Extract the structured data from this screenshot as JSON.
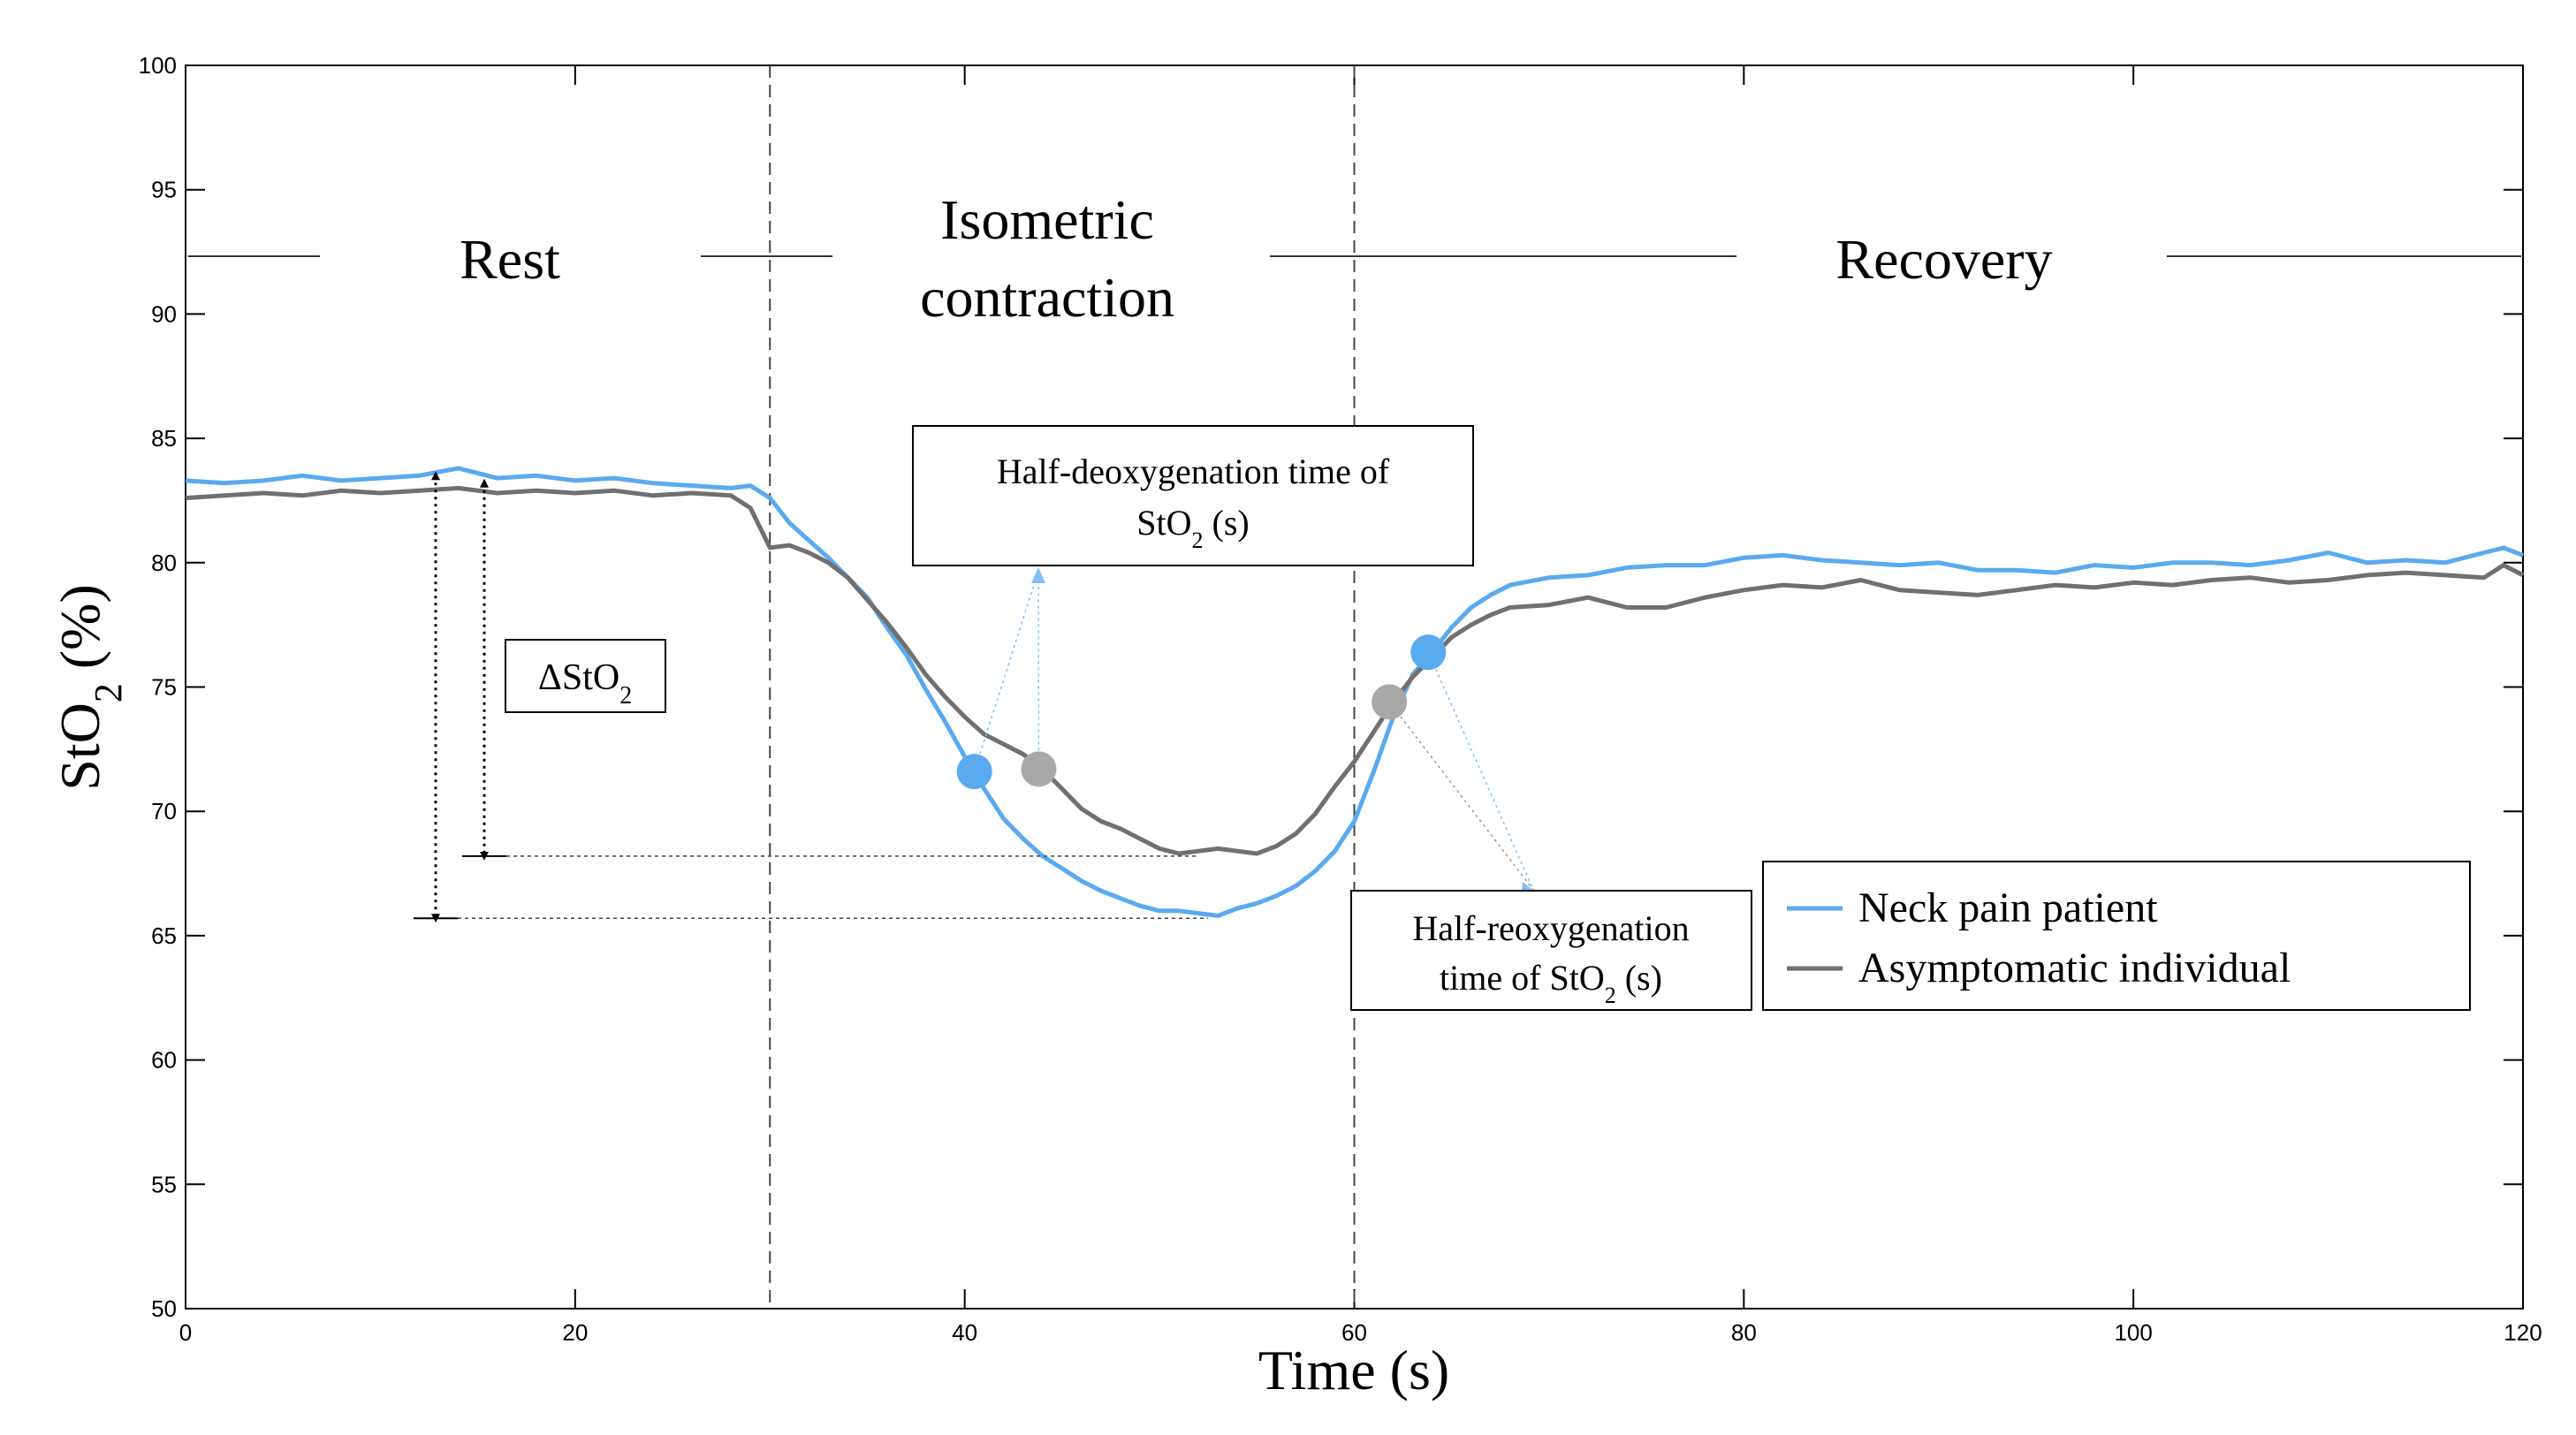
{
  "chart_data": {
    "type": "line",
    "xlabel": "Time (s)",
    "ylabel_main": "StO",
    "ylabel_sub": "2",
    "ylabel_unit": " (%)",
    "xlim": [
      0,
      120
    ],
    "ylim": [
      50,
      100
    ],
    "xticks": [
      0,
      20,
      40,
      60,
      80,
      100,
      120
    ],
    "yticks": [
      50,
      55,
      60,
      65,
      70,
      75,
      80,
      85,
      90,
      95,
      100
    ],
    "phase_boundaries": [
      30,
      60
    ],
    "phases": {
      "rest": "Rest",
      "isometric_line1": "Isometric",
      "isometric_line2": "contraction",
      "recovery": "Recovery"
    },
    "series": [
      {
        "name": "Neck pain patient",
        "color": "#5aaaf0",
        "points": [
          [
            0,
            83.3
          ],
          [
            2,
            83.2
          ],
          [
            4,
            83.3
          ],
          [
            6,
            83.5
          ],
          [
            8,
            83.3
          ],
          [
            10,
            83.4
          ],
          [
            12,
            83.5
          ],
          [
            14,
            83.8
          ],
          [
            16,
            83.4
          ],
          [
            18,
            83.5
          ],
          [
            20,
            83.3
          ],
          [
            22,
            83.4
          ],
          [
            24,
            83.2
          ],
          [
            26,
            83.1
          ],
          [
            28,
            83.0
          ],
          [
            29,
            83.1
          ],
          [
            30,
            82.6
          ],
          [
            31,
            81.6
          ],
          [
            32,
            80.9
          ],
          [
            33,
            80.2
          ],
          [
            34,
            79.4
          ],
          [
            35,
            78.6
          ],
          [
            36,
            77.4
          ],
          [
            37,
            76.3
          ],
          [
            38,
            74.9
          ],
          [
            39,
            73.6
          ],
          [
            40,
            72.2
          ],
          [
            40.5,
            71.6
          ],
          [
            41,
            70.9
          ],
          [
            42,
            69.7
          ],
          [
            43,
            68.9
          ],
          [
            44,
            68.2
          ],
          [
            45,
            67.7
          ],
          [
            46,
            67.2
          ],
          [
            47,
            66.8
          ],
          [
            48,
            66.5
          ],
          [
            49,
            66.2
          ],
          [
            50,
            66.0
          ],
          [
            51,
            66.0
          ],
          [
            52,
            65.9
          ],
          [
            53,
            65.8
          ],
          [
            54,
            66.1
          ],
          [
            55,
            66.3
          ],
          [
            56,
            66.6
          ],
          [
            57,
            67.0
          ],
          [
            58,
            67.6
          ],
          [
            59,
            68.4
          ],
          [
            60,
            69.6
          ],
          [
            61,
            71.6
          ],
          [
            62,
            73.8
          ],
          [
            63,
            75.5
          ],
          [
            64,
            76.4
          ],
          [
            65,
            77.4
          ],
          [
            66,
            78.2
          ],
          [
            67,
            78.7
          ],
          [
            68,
            79.1
          ],
          [
            70,
            79.4
          ],
          [
            72,
            79.5
          ],
          [
            74,
            79.8
          ],
          [
            76,
            79.9
          ],
          [
            78,
            79.9
          ],
          [
            80,
            80.2
          ],
          [
            82,
            80.3
          ],
          [
            84,
            80.1
          ],
          [
            86,
            80.0
          ],
          [
            88,
            79.9
          ],
          [
            90,
            80.0
          ],
          [
            92,
            79.7
          ],
          [
            94,
            79.7
          ],
          [
            96,
            79.6
          ],
          [
            98,
            79.9
          ],
          [
            100,
            79.8
          ],
          [
            102,
            80.0
          ],
          [
            104,
            80.0
          ],
          [
            106,
            79.9
          ],
          [
            108,
            80.1
          ],
          [
            110,
            80.4
          ],
          [
            112,
            80.0
          ],
          [
            114,
            80.1
          ],
          [
            116,
            80.0
          ],
          [
            118,
            80.4
          ],
          [
            119,
            80.6
          ],
          [
            120,
            80.3
          ]
        ]
      },
      {
        "name": "Asymptomatic individual",
        "color": "#707070",
        "points": [
          [
            0,
            82.6
          ],
          [
            2,
            82.7
          ],
          [
            4,
            82.8
          ],
          [
            6,
            82.7
          ],
          [
            8,
            82.9
          ],
          [
            10,
            82.8
          ],
          [
            12,
            82.9
          ],
          [
            14,
            83.0
          ],
          [
            16,
            82.8
          ],
          [
            18,
            82.9
          ],
          [
            20,
            82.8
          ],
          [
            22,
            82.9
          ],
          [
            24,
            82.7
          ],
          [
            26,
            82.8
          ],
          [
            28,
            82.7
          ],
          [
            29,
            82.2
          ],
          [
            30,
            80.6
          ],
          [
            31,
            80.7
          ],
          [
            32,
            80.4
          ],
          [
            33,
            80.0
          ],
          [
            34,
            79.4
          ],
          [
            35,
            78.5
          ],
          [
            36,
            77.6
          ],
          [
            37,
            76.6
          ],
          [
            38,
            75.5
          ],
          [
            39,
            74.6
          ],
          [
            40,
            73.8
          ],
          [
            41,
            73.1
          ],
          [
            42,
            72.7
          ],
          [
            43,
            72.3
          ],
          [
            44,
            71.7
          ],
          [
            45,
            70.9
          ],
          [
            46,
            70.1
          ],
          [
            47,
            69.6
          ],
          [
            48,
            69.3
          ],
          [
            49,
            68.9
          ],
          [
            50,
            68.5
          ],
          [
            51,
            68.3
          ],
          [
            52,
            68.4
          ],
          [
            53,
            68.5
          ],
          [
            54,
            68.4
          ],
          [
            55,
            68.3
          ],
          [
            56,
            68.6
          ],
          [
            57,
            69.1
          ],
          [
            58,
            69.9
          ],
          [
            59,
            71.0
          ],
          [
            60,
            72.0
          ],
          [
            61,
            73.2
          ],
          [
            62,
            74.4
          ],
          [
            63,
            75.4
          ],
          [
            64,
            76.2
          ],
          [
            65,
            77.0
          ],
          [
            66,
            77.5
          ],
          [
            67,
            77.9
          ],
          [
            68,
            78.2
          ],
          [
            70,
            78.3
          ],
          [
            72,
            78.6
          ],
          [
            74,
            78.2
          ],
          [
            76,
            78.2
          ],
          [
            78,
            78.6
          ],
          [
            80,
            78.9
          ],
          [
            82,
            79.1
          ],
          [
            84,
            79.0
          ],
          [
            86,
            79.3
          ],
          [
            88,
            78.9
          ],
          [
            90,
            78.8
          ],
          [
            92,
            78.7
          ],
          [
            94,
            78.9
          ],
          [
            96,
            79.1
          ],
          [
            98,
            79.0
          ],
          [
            100,
            79.2
          ],
          [
            102,
            79.1
          ],
          [
            104,
            79.3
          ],
          [
            106,
            79.4
          ],
          [
            108,
            79.2
          ],
          [
            110,
            79.3
          ],
          [
            112,
            79.5
          ],
          [
            114,
            79.6
          ],
          [
            116,
            79.5
          ],
          [
            118,
            79.4
          ],
          [
            119,
            79.9
          ],
          [
            120,
            79.5
          ]
        ]
      }
    ],
    "half_points": [
      {
        "name": "patient-half-deoxygenation",
        "series": "Neck pain patient",
        "x": 40.5,
        "y": 71.6,
        "color": "#5aaaf0"
      },
      {
        "name": "asymptomatic-half-deoxygenation",
        "series": "Asymptomatic individual",
        "x": 43.8,
        "y": 71.7,
        "color": "#a8a8a8"
      },
      {
        "name": "asymptomatic-half-reoxygenation",
        "series": "Asymptomatic individual",
        "x": 61.8,
        "y": 74.4,
        "color": "#a8a8a8"
      },
      {
        "name": "patient-half-reoxygenation",
        "series": "Neck pain patient",
        "x": 63.8,
        "y": 76.4,
        "color": "#5aaaf0"
      }
    ],
    "baselines": {
      "patient": 83.5,
      "asymptomatic": 83.2
    },
    "minima": {
      "patient": 65.7,
      "asymptomatic": 68.2
    },
    "annotations": {
      "delta": {
        "main": "ΔStO",
        "sub": "2"
      },
      "half_deoxy": {
        "line1": "Half-deoxygenation time of",
        "line2_main": "StO",
        "line2_sub": "2",
        "line2_end": " (s)"
      },
      "half_reoxy": {
        "line1": "Half-reoxygenation",
        "line2_main": "time of StO",
        "line2_sub": "2",
        "line2_end": " (s)"
      }
    },
    "legend": {
      "position": "lower-right",
      "entries": [
        "Neck pain patient",
        "Asymptomatic individual"
      ]
    }
  }
}
